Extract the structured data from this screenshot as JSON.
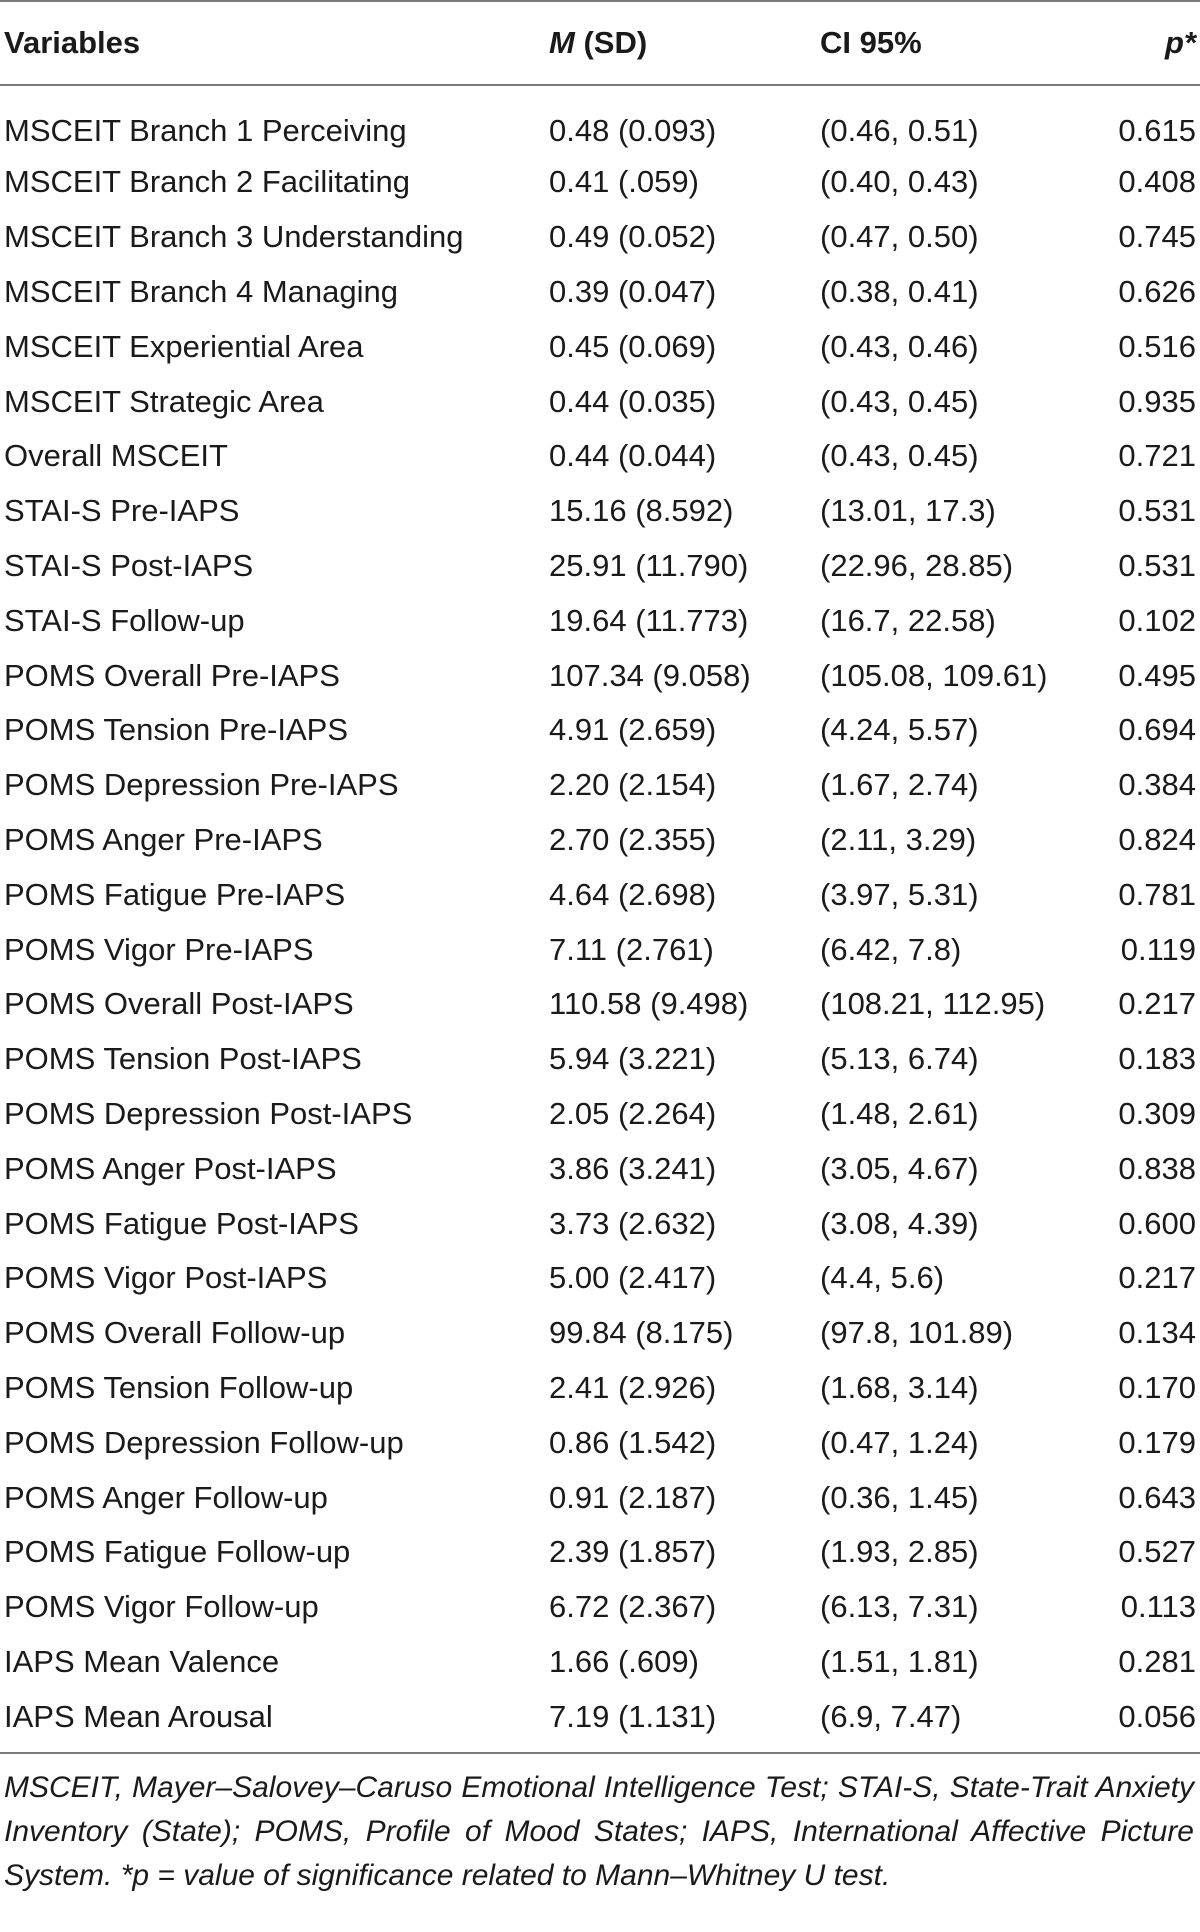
{
  "table": {
    "headers": {
      "variables": "Variables",
      "m_italic": "M",
      "m_rest": " (SD)",
      "ci": "CI 95%",
      "p_italic": "p*"
    },
    "rows": [
      {
        "variable": "MSCEIT Branch 1 Perceiving",
        "msd": "0.48 (0.093)",
        "ci": "(0.46, 0.51)",
        "p": "0.615"
      },
      {
        "variable": "MSCEIT Branch 2 Facilitating",
        "msd": "0.41 (.059)",
        "ci": "(0.40, 0.43)",
        "p": "0.408"
      },
      {
        "variable": "MSCEIT Branch 3 Understanding",
        "msd": "0.49 (0.052)",
        "ci": "(0.47, 0.50)",
        "p": "0.745"
      },
      {
        "variable": "MSCEIT Branch 4 Managing",
        "msd": "0.39 (0.047)",
        "ci": "(0.38, 0.41)",
        "p": "0.626"
      },
      {
        "variable": "MSCEIT Experiential Area",
        "msd": "0.45 (0.069)",
        "ci": "(0.43, 0.46)",
        "p": "0.516"
      },
      {
        "variable": "MSCEIT Strategic Area",
        "msd": "0.44 (0.035)",
        "ci": "(0.43, 0.45)",
        "p": "0.935"
      },
      {
        "variable": "Overall MSCEIT",
        "msd": "0.44 (0.044)",
        "ci": "(0.43, 0.45)",
        "p": "0.721"
      },
      {
        "variable": "STAI-S Pre-IAPS",
        "msd": "15.16 (8.592)",
        "ci": "(13.01, 17.3)",
        "p": "0.531"
      },
      {
        "variable": "STAI-S Post-IAPS",
        "msd": "25.91 (11.790)",
        "ci": "(22.96, 28.85)",
        "p": "0.531"
      },
      {
        "variable": "STAI-S Follow-up",
        "msd": "19.64 (11.773)",
        "ci": "(16.7, 22.58)",
        "p": "0.102"
      },
      {
        "variable": "POMS Overall Pre-IAPS",
        "msd": "107.34 (9.058)",
        "ci": "(105.08, 109.61)",
        "p": "0.495"
      },
      {
        "variable": "POMS Tension Pre-IAPS",
        "msd": "4.91 (2.659)",
        "ci": "(4.24, 5.57)",
        "p": "0.694"
      },
      {
        "variable": "POMS Depression Pre-IAPS",
        "msd": "2.20 (2.154)",
        "ci": "(1.67, 2.74)",
        "p": "0.384"
      },
      {
        "variable": "POMS Anger Pre-IAPS",
        "msd": "2.70 (2.355)",
        "ci": "(2.11, 3.29)",
        "p": "0.824"
      },
      {
        "variable": "POMS Fatigue Pre-IAPS",
        "msd": "4.64 (2.698)",
        "ci": "(3.97, 5.31)",
        "p": "0.781"
      },
      {
        "variable": "POMS Vigor Pre-IAPS",
        "msd": "7.11 (2.761)",
        "ci": "(6.42, 7.8)",
        "p": "0.119"
      },
      {
        "variable": "POMS Overall Post-IAPS",
        "msd": "110.58 (9.498)",
        "ci": "(108.21, 112.95)",
        "p": "0.217"
      },
      {
        "variable": "POMS Tension Post-IAPS",
        "msd": "5.94 (3.221)",
        "ci": "(5.13, 6.74)",
        "p": "0.183"
      },
      {
        "variable": "POMS Depression Post-IAPS",
        "msd": "2.05 (2.264)",
        "ci": "(1.48, 2.61)",
        "p": "0.309"
      },
      {
        "variable": "POMS Anger Post-IAPS",
        "msd": "3.86 (3.241)",
        "ci": "(3.05, 4.67)",
        "p": "0.838"
      },
      {
        "variable": "POMS Fatigue Post-IAPS",
        "msd": "3.73 (2.632)",
        "ci": "(3.08, 4.39)",
        "p": "0.600"
      },
      {
        "variable": "POMS Vigor Post-IAPS",
        "msd": "5.00 (2.417)",
        "ci": "(4.4, 5.6)",
        "p": "0.217"
      },
      {
        "variable": "POMS Overall Follow-up",
        "msd": "99.84 (8.175)",
        "ci": "(97.8, 101.89)",
        "p": "0.134"
      },
      {
        "variable": "POMS Tension Follow-up",
        "msd": "2.41 (2.926)",
        "ci": "(1.68, 3.14)",
        "p": "0.170"
      },
      {
        "variable": "POMS Depression Follow-up",
        "msd": "0.86 (1.542)",
        "ci": "(0.47, 1.24)",
        "p": "0.179"
      },
      {
        "variable": "POMS Anger Follow-up",
        "msd": "0.91 (2.187)",
        "ci": "(0.36, 1.45)",
        "p": "0.643"
      },
      {
        "variable": "POMS Fatigue Follow-up",
        "msd": "2.39 (1.857)",
        "ci": "(1.93, 2.85)",
        "p": "0.527"
      },
      {
        "variable": "POMS Vigor Follow-up",
        "msd": "6.72 (2.367)",
        "ci": "(6.13, 7.31)",
        "p": "0.113"
      },
      {
        "variable": "IAPS Mean Valence",
        "msd": "1.66 (.609)",
        "ci": "(1.51, 1.81)",
        "p": "0.281"
      },
      {
        "variable": "IAPS Mean Arousal",
        "msd": "7.19 (1.131)",
        "ci": "(6.9, 7.47)",
        "p": "0.056"
      }
    ]
  },
  "footnote": "MSCEIT, Mayer–Salovey–Caruso Emotional Intelligence Test; STAI-S, State-Trait Anxiety Inventory (State); POMS, Profile of Mood States; IAPS, International Affective Picture System. *p = value of significance related to Mann–Whitney U test."
}
